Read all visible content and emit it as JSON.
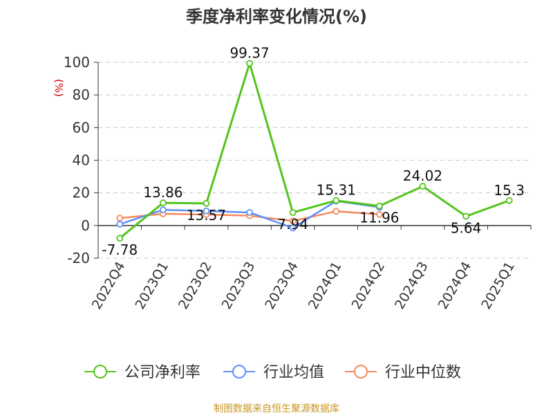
{
  "chart_data": {
    "type": "line",
    "title": "季度净利率变化情况(%)",
    "ylabel": "(%)",
    "xlabel": "",
    "categories": [
      "2022Q4",
      "2023Q1",
      "2023Q2",
      "2023Q3",
      "2023Q4",
      "2024Q1",
      "2024Q2",
      "2024Q3",
      "2024Q4",
      "2025Q1"
    ],
    "y_ticks": [
      100,
      80,
      60,
      40,
      20,
      0,
      -20
    ],
    "ylim": [
      -20,
      100
    ],
    "grid": true,
    "legend_position": "bottom",
    "series": [
      {
        "name": "公司净利率",
        "color": "#52c41a",
        "values": [
          -7.78,
          13.86,
          13.57,
          99.37,
          7.94,
          15.31,
          11.96,
          24.02,
          5.64,
          15.3
        ],
        "labels": [
          "-7.78",
          "13.86",
          "13.57",
          "99.37",
          "7.94",
          "15.31",
          "11.96",
          "24.02",
          "5.64",
          "15.3"
        ]
      },
      {
        "name": "行业均值",
        "color": "#5b8ff9",
        "values": [
          0.8,
          9.6,
          8.9,
          8.0,
          -1.5,
          15.0,
          11.2,
          null,
          null,
          null
        ]
      },
      {
        "name": "行业中位数",
        "color": "#f6895a",
        "values": [
          4.5,
          7.2,
          6.7,
          6.0,
          2.8,
          8.7,
          6.8,
          null,
          null,
          null
        ]
      }
    ]
  },
  "source": "制图数据来自恒生聚源数据库"
}
